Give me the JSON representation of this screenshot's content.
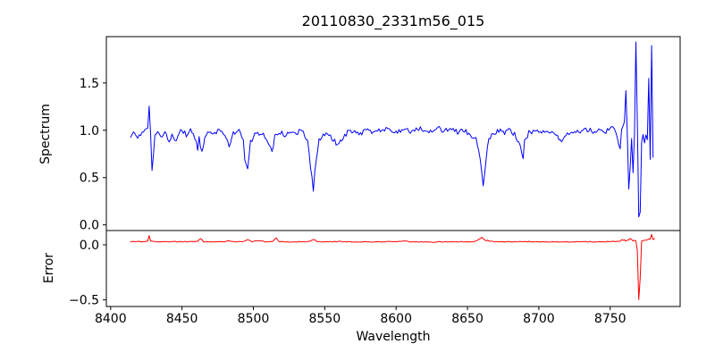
{
  "chart_data": {
    "type": "line",
    "title": "20110830_2331m56_015",
    "xlabel": "Wavelength",
    "grid": false,
    "legend": "none",
    "x_axis": {
      "lim": [
        8397,
        8799
      ],
      "ticks": [
        {
          "v": 8400,
          "label": "8400"
        },
        {
          "v": 8450,
          "label": "8450"
        },
        {
          "v": 8500,
          "label": "8500"
        },
        {
          "v": 8550,
          "label": "8550"
        },
        {
          "v": 8600,
          "label": "8600"
        },
        {
          "v": 8650,
          "label": "8650"
        },
        {
          "v": 8700,
          "label": "8700"
        },
        {
          "v": 8750,
          "label": "8750"
        }
      ]
    },
    "panels": [
      {
        "name": "spectrum-panel",
        "ylabel": "Spectrum",
        "ylim": [
          -0.06,
          1.99
        ],
        "yticks": [
          {
            "v": 0.0,
            "label": "0.0"
          },
          {
            "v": 0.5,
            "label": "0.5"
          },
          {
            "v": 1.0,
            "label": "1.0"
          },
          {
            "v": 1.5,
            "label": "1.5"
          }
        ]
      },
      {
        "name": "error-panel",
        "ylabel": "Error",
        "ylim": [
          -0.56,
          0.13
        ],
        "yticks": [
          {
            "v": 0.0,
            "label": "0.0"
          },
          {
            "v": -0.5,
            "label": "−0.5"
          }
        ]
      }
    ],
    "notes": {
      "baseline_flux": 1.0,
      "absorption_line_wavelengths": [
        8427,
        8464,
        8483,
        8496,
        8513,
        8542,
        8560,
        8661,
        8689
      ],
      "artifact_region": [
        8755,
        8781
      ],
      "error_spike": {
        "wavelength": 8770,
        "value": -0.5
      }
    },
    "series": [
      {
        "name": "spectrum",
        "panel": 0,
        "color": "#0000ff",
        "x_start": 8414,
        "x_end": 8780,
        "step": 1,
        "noise_amp": 0.027,
        "noise_zones": [
          {
            "from": 8754,
            "to": 8781,
            "amp": 0.01
          }
        ],
        "anchors": [
          [
            8414,
            0.95
          ],
          [
            8417,
            0.98
          ],
          [
            8419,
            0.9
          ],
          [
            8421,
            0.97
          ],
          [
            8424,
            1.02
          ],
          [
            8426,
            1.0
          ],
          [
            8427,
            1.28
          ],
          [
            8428,
            0.95
          ],
          [
            8429,
            0.55
          ],
          [
            8430,
            0.75
          ],
          [
            8431,
            0.95
          ],
          [
            8433,
            1.0
          ],
          [
            8436,
            0.92
          ],
          [
            8438,
            0.98
          ],
          [
            8441,
            0.89
          ],
          [
            8443,
            0.95
          ],
          [
            8445,
            0.87
          ],
          [
            8447,
            0.95
          ],
          [
            8450,
            1.0
          ],
          [
            8453,
            0.95
          ],
          [
            8456,
            1.0
          ],
          [
            8459,
            0.93
          ],
          [
            8461,
            0.8
          ],
          [
            8462,
            0.92
          ],
          [
            8464,
            0.76
          ],
          [
            8466,
            0.95
          ],
          [
            8469,
            1.0
          ],
          [
            8472,
            0.97
          ],
          [
            8476,
            1.0
          ],
          [
            8480,
            0.95
          ],
          [
            8483,
            0.85
          ],
          [
            8486,
            0.97
          ],
          [
            8490,
            1.0
          ],
          [
            8493,
            0.9
          ],
          [
            8494,
            0.7
          ],
          [
            8496,
            0.59
          ],
          [
            8498,
            0.88
          ],
          [
            8501,
            0.95
          ],
          [
            8505,
            0.98
          ],
          [
            8509,
            0.92
          ],
          [
            8513,
            0.78
          ],
          [
            8515,
            0.93
          ],
          [
            8518,
            0.98
          ],
          [
            8522,
            0.95
          ],
          [
            8526,
            1.0
          ],
          [
            8530,
            0.97
          ],
          [
            8534,
            1.0
          ],
          [
            8538,
            0.9
          ],
          [
            8540,
            0.6
          ],
          [
            8542,
            0.38
          ],
          [
            8544,
            0.7
          ],
          [
            8546,
            0.9
          ],
          [
            8549,
            0.97
          ],
          [
            8553,
            0.95
          ],
          [
            8557,
            0.88
          ],
          [
            8560,
            0.84
          ],
          [
            8563,
            0.93
          ],
          [
            8566,
            0.98
          ],
          [
            8570,
            1.0
          ],
          [
            8575,
            0.97
          ],
          [
            8580,
            1.0
          ],
          [
            8586,
            0.98
          ],
          [
            8592,
            1.01
          ],
          [
            8598,
            0.98
          ],
          [
            8604,
            1.0
          ],
          [
            8610,
            0.99
          ],
          [
            8616,
            1.02
          ],
          [
            8622,
            0.98
          ],
          [
            8628,
            1.03
          ],
          [
            8633,
            0.99
          ],
          [
            8638,
            1.01
          ],
          [
            8643,
            0.98
          ],
          [
            8648,
            1.0
          ],
          [
            8652,
            0.96
          ],
          [
            8656,
            0.9
          ],
          [
            8659,
            0.7
          ],
          [
            8661,
            0.42
          ],
          [
            8663,
            0.7
          ],
          [
            8665,
            0.9
          ],
          [
            8668,
            0.96
          ],
          [
            8672,
            1.0
          ],
          [
            8676,
            0.98
          ],
          [
            8680,
            1.0
          ],
          [
            8684,
            0.94
          ],
          [
            8687,
            0.84
          ],
          [
            8689,
            0.72
          ],
          [
            8690,
            0.9
          ],
          [
            8693,
            0.97
          ],
          [
            8697,
            1.0
          ],
          [
            8702,
            0.98
          ],
          [
            8707,
            1.0
          ],
          [
            8712,
            0.96
          ],
          [
            8716,
            0.89
          ],
          [
            8719,
            0.96
          ],
          [
            8723,
            1.0
          ],
          [
            8728,
            0.98
          ],
          [
            8733,
            1.01
          ],
          [
            8738,
            0.99
          ],
          [
            8743,
            1.01
          ],
          [
            8747,
            0.98
          ],
          [
            8751,
            1.03
          ],
          [
            8754,
            0.98
          ],
          [
            8756,
            0.85
          ],
          [
            8757,
            0.81
          ],
          [
            8758,
            1.0
          ],
          [
            8760,
            1.1
          ],
          [
            8761,
            1.42
          ],
          [
            8762,
            0.95
          ],
          [
            8763,
            0.38
          ],
          [
            8764,
            0.6
          ],
          [
            8765,
            0.92
          ],
          [
            8766,
            0.55
          ],
          [
            8767,
            0.95
          ],
          [
            8768,
            1.94
          ],
          [
            8769,
            1.1
          ],
          [
            8770,
            0.08
          ],
          [
            8771,
            0.14
          ],
          [
            8772,
            0.88
          ],
          [
            8773,
            0.95
          ],
          [
            8774,
            0.86
          ],
          [
            8775,
            0.95
          ],
          [
            8776,
            0.9
          ],
          [
            8777,
            1.54
          ],
          [
            8778,
            0.7
          ],
          [
            8779,
            1.89
          ],
          [
            8780,
            0.72
          ]
        ]
      },
      {
        "name": "error",
        "panel": 1,
        "color": "#ff0000",
        "x_start": 8414,
        "x_end": 8781,
        "step": 1,
        "noise_amp": 0.0035,
        "noise_zones": [
          {
            "from": 8755,
            "to": 8768,
            "amp": 0.007
          }
        ],
        "anchors": [
          [
            8414,
            0.03
          ],
          [
            8422,
            0.03
          ],
          [
            8426,
            0.032
          ],
          [
            8427,
            0.088
          ],
          [
            8428,
            0.032
          ],
          [
            8435,
            0.028
          ],
          [
            8444,
            0.03
          ],
          [
            8451,
            0.028
          ],
          [
            8456,
            0.03
          ],
          [
            8461,
            0.032
          ],
          [
            8463,
            0.06
          ],
          [
            8465,
            0.03
          ],
          [
            8472,
            0.028
          ],
          [
            8480,
            0.028
          ],
          [
            8483,
            0.04
          ],
          [
            8486,
            0.028
          ],
          [
            8493,
            0.03
          ],
          [
            8496,
            0.048
          ],
          [
            8499,
            0.03
          ],
          [
            8505,
            0.04
          ],
          [
            8508,
            0.028
          ],
          [
            8513,
            0.03
          ],
          [
            8516,
            0.062
          ],
          [
            8518,
            0.03
          ],
          [
            8526,
            0.027
          ],
          [
            8534,
            0.028
          ],
          [
            8540,
            0.032
          ],
          [
            8542,
            0.05
          ],
          [
            8545,
            0.03
          ],
          [
            8552,
            0.028
          ],
          [
            8560,
            0.03
          ],
          [
            8570,
            0.027
          ],
          [
            8580,
            0.026
          ],
          [
            8590,
            0.027
          ],
          [
            8600,
            0.03
          ],
          [
            8605,
            0.034
          ],
          [
            8610,
            0.028
          ],
          [
            8620,
            0.026
          ],
          [
            8630,
            0.027
          ],
          [
            8640,
            0.027
          ],
          [
            8650,
            0.028
          ],
          [
            8656,
            0.032
          ],
          [
            8660,
            0.068
          ],
          [
            8663,
            0.04
          ],
          [
            8666,
            0.032
          ],
          [
            8672,
            0.028
          ],
          [
            8680,
            0.027
          ],
          [
            8688,
            0.032
          ],
          [
            8695,
            0.028
          ],
          [
            8702,
            0.028
          ],
          [
            8710,
            0.028
          ],
          [
            8720,
            0.028
          ],
          [
            8730,
            0.029
          ],
          [
            8740,
            0.028
          ],
          [
            8748,
            0.029
          ],
          [
            8755,
            0.03
          ],
          [
            8758,
            0.04
          ],
          [
            8760,
            0.05
          ],
          [
            8761,
            0.035
          ],
          [
            8763,
            0.045
          ],
          [
            8765,
            0.055
          ],
          [
            8766,
            0.035
          ],
          [
            8768,
            0.04
          ],
          [
            8769,
            -0.05
          ],
          [
            8770,
            -0.5
          ],
          [
            8771,
            -0.3
          ],
          [
            8772,
            0.035
          ],
          [
            8774,
            0.04
          ],
          [
            8776,
            0.045
          ],
          [
            8777,
            0.05
          ],
          [
            8778,
            0.055
          ],
          [
            8779,
            0.092
          ],
          [
            8780,
            0.05
          ],
          [
            8781,
            0.055
          ]
        ]
      }
    ]
  }
}
